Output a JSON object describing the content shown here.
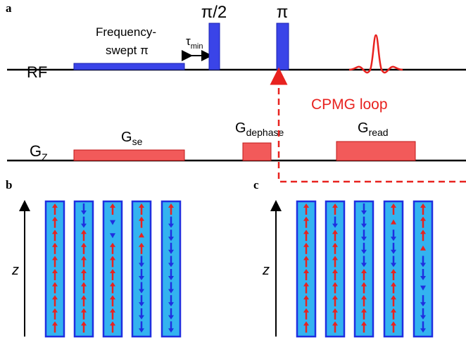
{
  "panel_labels": {
    "a": "a",
    "b": "b",
    "c": "c"
  },
  "sequence": {
    "rf_label": "RF",
    "gz_label": {
      "base": "G",
      "sub": "Z"
    },
    "frequency_swept": [
      "Frequency-",
      "swept π"
    ],
    "tau": {
      "base": "τ",
      "sub": "min"
    },
    "pi_half": "π/2",
    "pi": "π",
    "cpmg_loop": "CPMG loop",
    "g_se": {
      "base": "G",
      "sub": "se"
    },
    "g_dephase": {
      "base": "G",
      "sub": "dephase"
    },
    "g_read": {
      "base": "G",
      "sub": "read"
    }
  },
  "panels": {
    "b": {
      "axis_label": "z"
    },
    "c": {
      "axis_label": "z"
    }
  }
}
